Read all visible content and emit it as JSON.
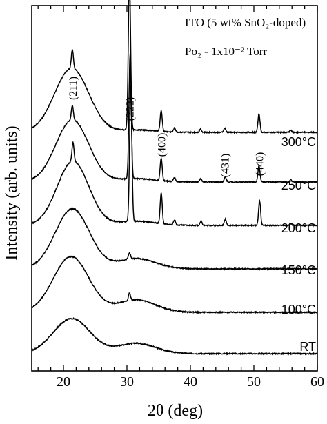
{
  "chart_data": {
    "type": "line",
    "xlabel": "2θ (deg)",
    "ylabel": "Intensity (arb. units)",
    "xlim": [
      15,
      60
    ],
    "xticks": [
      20,
      30,
      40,
      50,
      60
    ],
    "yticks": "none",
    "annotations": {
      "title_line1": "ITO (5 wt% SnO₂-doped)",
      "title_line2": "Po₂ - 1x10⁻² Torr"
    },
    "peaks": [
      {
        "label": "(211)",
        "x": 21.4
      },
      {
        "label": "(222)",
        "x": 30.4
      },
      {
        "label": "(400)",
        "x": 35.4
      },
      {
        "label": "(431)",
        "x": 45.4
      },
      {
        "label": "(440)",
        "x": 50.8
      }
    ],
    "series": [
      {
        "name": "RT",
        "baseline": 0.0,
        "hump": 0.85,
        "center": 21.3,
        "width": 2.9,
        "hump2": 0.25,
        "peaks": []
      },
      {
        "name": "100°C",
        "baseline": 1.0,
        "hump": 1.35,
        "center": 21.2,
        "width": 2.8,
        "hump2": 0.3,
        "peaks": [
          [
            30.4,
            0.18
          ]
        ]
      },
      {
        "name": "150°C",
        "baseline": 2.05,
        "hump": 1.45,
        "center": 21.4,
        "width": 2.7,
        "hump2": 0.25,
        "peaks": [
          [
            30.4,
            0.15
          ]
        ]
      },
      {
        "name": "200°C",
        "baseline": 3.1,
        "hump": 1.55,
        "center": 21.5,
        "width": 2.5,
        "hump2": 0.1,
        "peaks": [
          [
            21.5,
            0.45
          ],
          [
            30.6,
            3.3
          ],
          [
            35.4,
            0.75
          ],
          [
            37.5,
            0.12
          ],
          [
            41.7,
            0.1
          ],
          [
            45.5,
            0.15
          ],
          [
            50.9,
            0.6
          ],
          [
            55.8,
            0.05
          ]
        ]
      },
      {
        "name": "250°C",
        "baseline": 4.15,
        "hump": 1.5,
        "center": 21.4,
        "width": 2.6,
        "hump2": 0.08,
        "peaks": [
          [
            21.4,
            0.35
          ],
          [
            30.5,
            3.0
          ],
          [
            35.4,
            0.55
          ],
          [
            37.5,
            0.1
          ],
          [
            41.6,
            0.08
          ],
          [
            45.5,
            0.12
          ],
          [
            50.8,
            0.4
          ],
          [
            55.8,
            0.05
          ]
        ]
      },
      {
        "name": "300°C",
        "baseline": 5.35,
        "hump": 1.55,
        "center": 21.3,
        "width": 2.7,
        "hump2": 0.06,
        "peaks": [
          [
            21.4,
            0.45
          ],
          [
            30.4,
            3.65
          ],
          [
            35.4,
            0.5
          ],
          [
            37.5,
            0.1
          ],
          [
            41.6,
            0.08
          ],
          [
            45.4,
            0.1
          ],
          [
            50.8,
            0.45
          ],
          [
            55.8,
            0.05
          ]
        ]
      }
    ]
  }
}
